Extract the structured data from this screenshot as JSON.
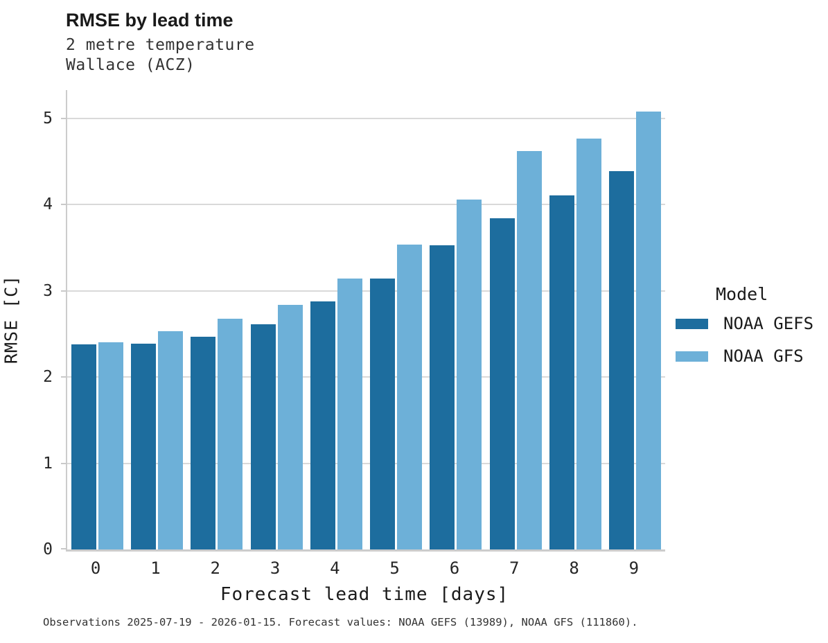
{
  "header": {
    "title": "RMSE by lead time",
    "subtitle_line1": "2 metre temperature",
    "subtitle_line2": "Wallace (ACZ)"
  },
  "legend": {
    "title": "Model",
    "entries": [
      {
        "label": "NOAA GEFS",
        "color": "#1d6d9e"
      },
      {
        "label": "NOAA GFS",
        "color": "#6db0d8"
      }
    ]
  },
  "footer": {
    "note": "Observations 2025-07-19 - 2026-01-15. Forecast values: NOAA GEFS (13989), NOAA GFS (111860)."
  },
  "chart_data": {
    "type": "bar",
    "title": "RMSE by lead time",
    "subtitle": [
      "2 metre temperature",
      "Wallace (ACZ)"
    ],
    "xlabel": "Forecast lead time [days]",
    "ylabel": "RMSE [C]",
    "categories": [
      "0",
      "1",
      "2",
      "3",
      "4",
      "5",
      "6",
      "7",
      "8",
      "9"
    ],
    "series": [
      {
        "name": "NOAA GEFS",
        "color": "#1d6d9e",
        "values": [
          2.38,
          2.39,
          2.47,
          2.61,
          2.88,
          3.14,
          3.53,
          3.84,
          4.11,
          4.39
        ]
      },
      {
        "name": "NOAA GFS",
        "color": "#6db0d8",
        "values": [
          2.4,
          2.53,
          2.68,
          2.84,
          3.14,
          3.54,
          4.06,
          4.62,
          4.77,
          5.08
        ]
      }
    ],
    "ylim": [
      0,
      5.33
    ],
    "yticks": [
      0,
      1,
      2,
      3,
      4,
      5
    ],
    "grid": "horizontal",
    "legend_position": "right",
    "colors": {
      "grid": "#d9d9d9",
      "spine": "#cccccc"
    }
  }
}
